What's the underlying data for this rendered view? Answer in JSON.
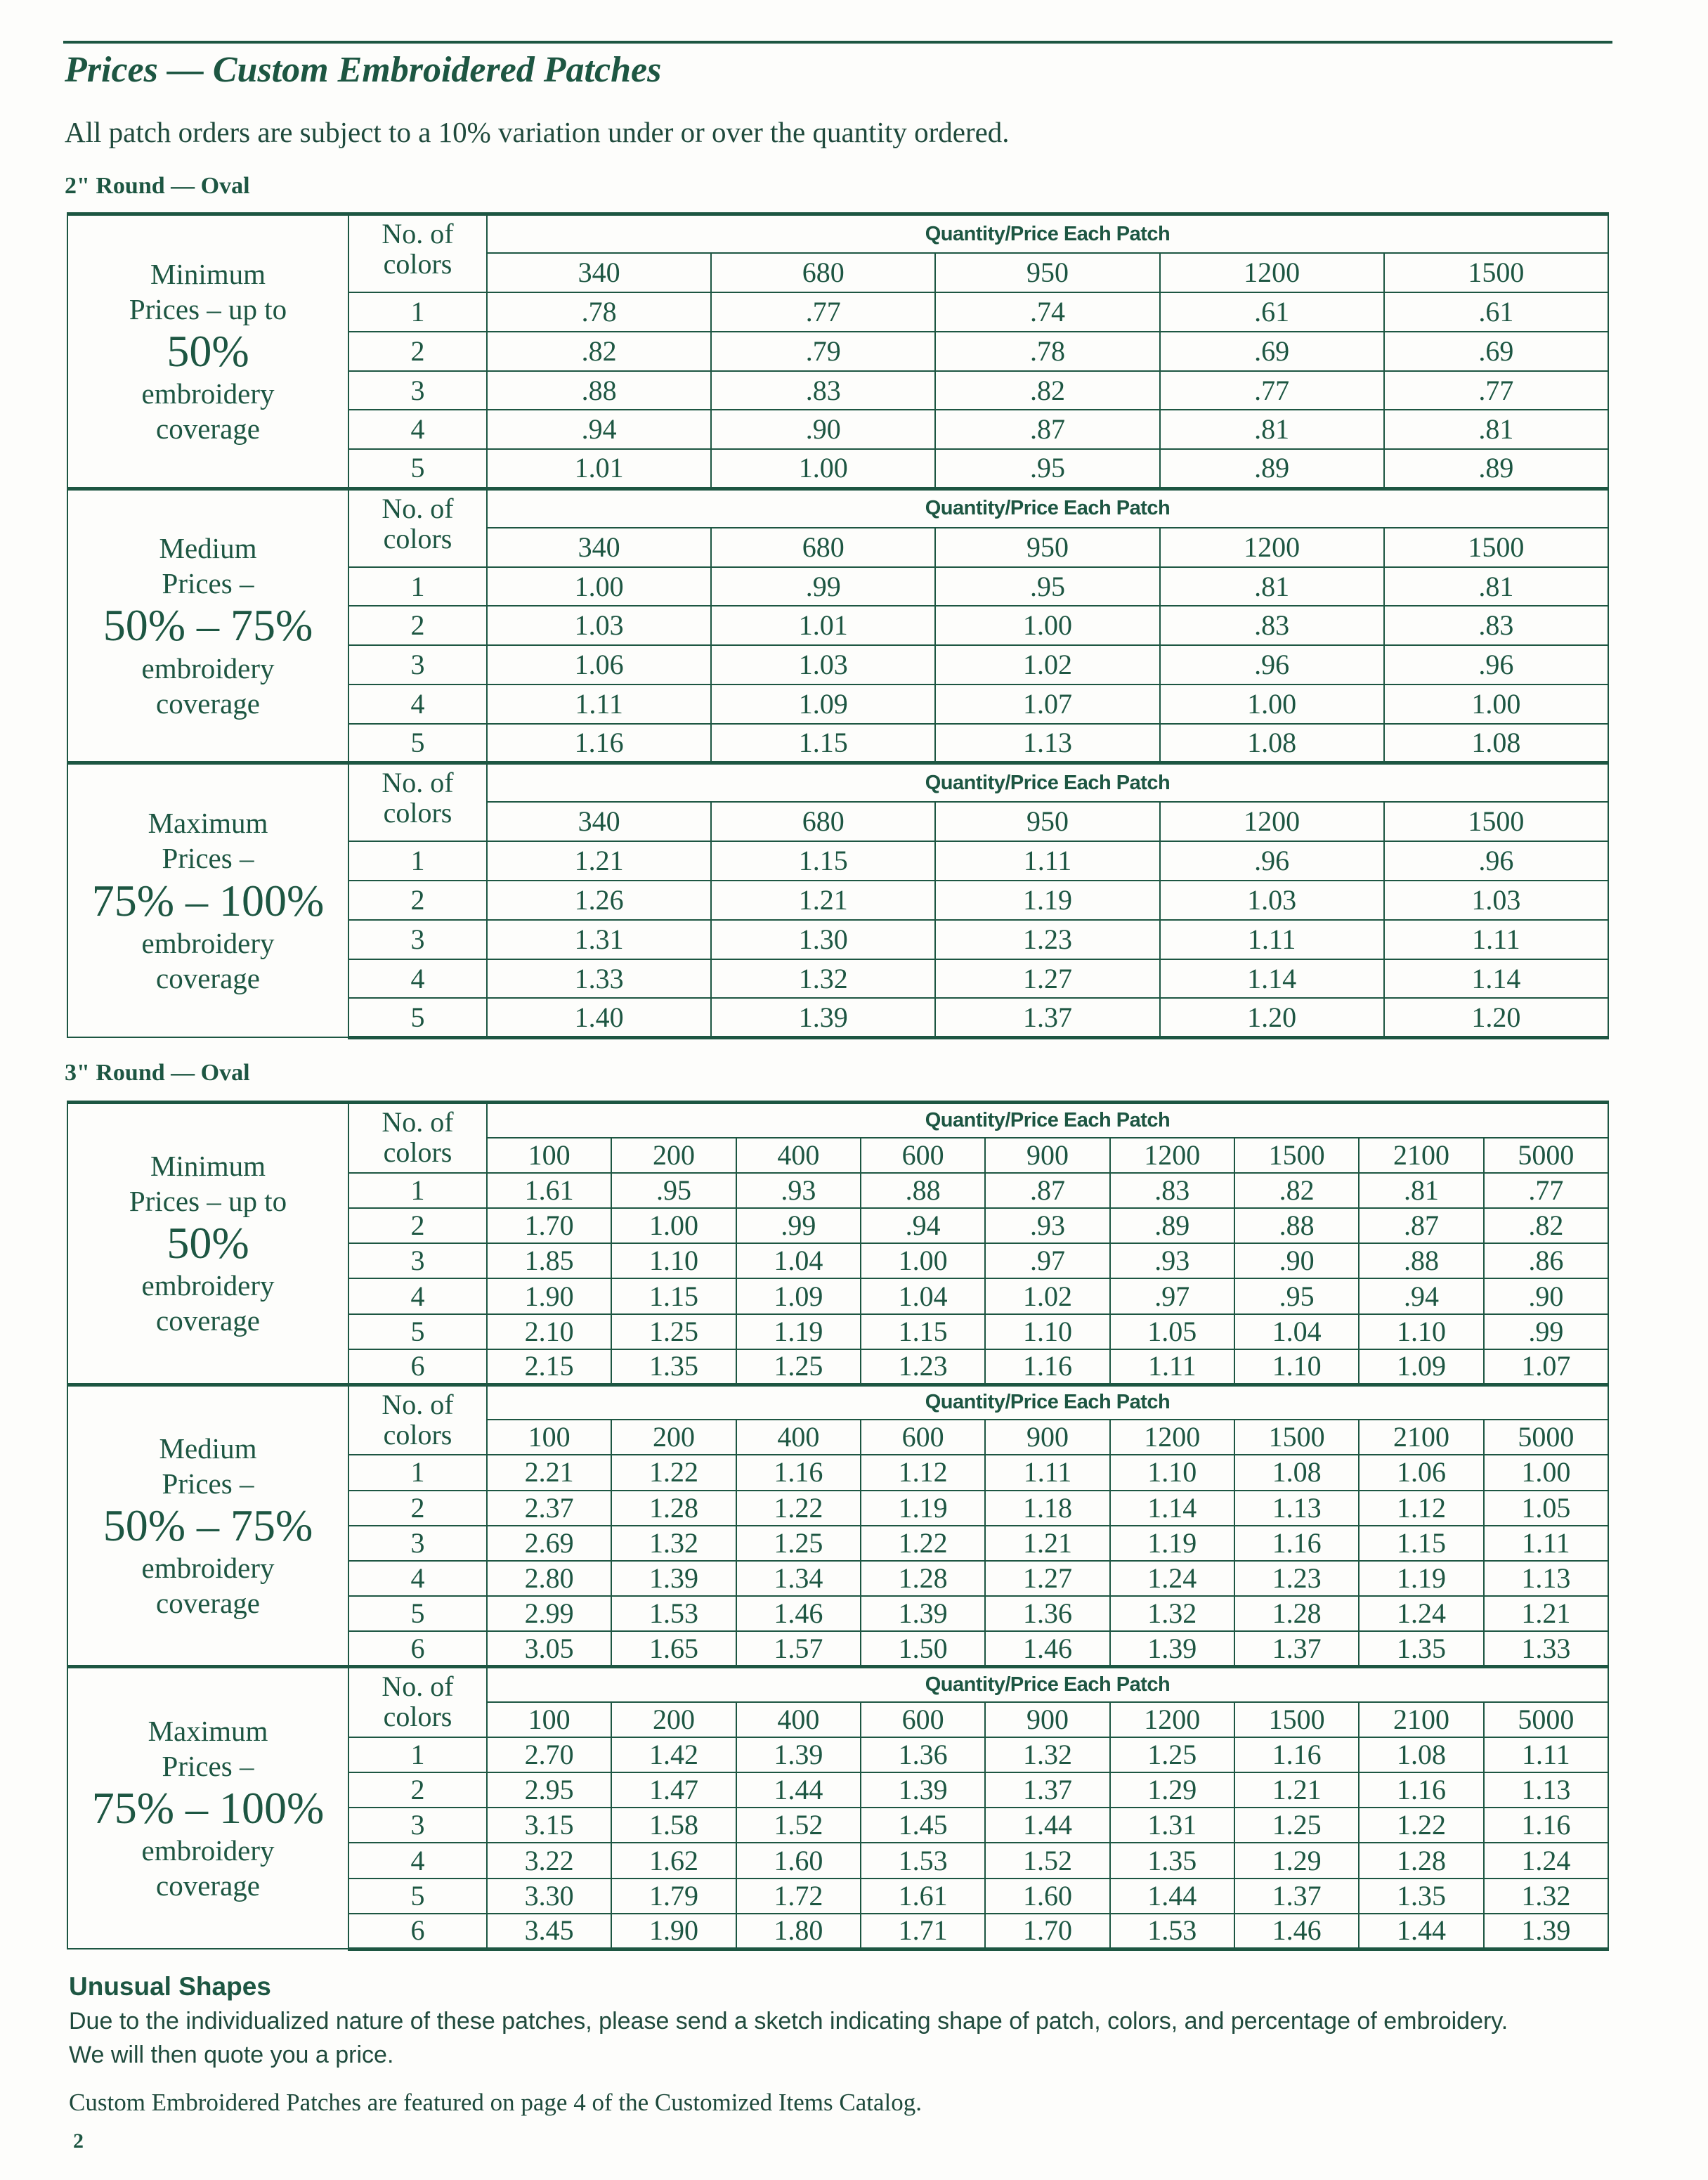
{
  "title": "Prices — Custom Embroidered Patches",
  "intro": "All patch orders are subject to a 10% variation under or over the quantity ordered.",
  "colors": {
    "ink": "#1d5642"
  },
  "sections": [
    {
      "heading": "2\" Round — Oval",
      "blocks": [
        {
          "label_top": [
            "Minimum",
            "Prices – up to"
          ],
          "label_pct": "50%",
          "label_bottom": [
            "embroidery",
            "coverage"
          ],
          "colors_label": [
            "No. of",
            "colors"
          ],
          "header": "Quantity/Price Each Patch",
          "quantities": [
            "340",
            "680",
            "950",
            "1200",
            "1500"
          ],
          "rows": [
            {
              "colors": "1",
              "prices": [
                ".78",
                ".77",
                ".74",
                ".61",
                ".61"
              ]
            },
            {
              "colors": "2",
              "prices": [
                ".82",
                ".79",
                ".78",
                ".69",
                ".69"
              ]
            },
            {
              "colors": "3",
              "prices": [
                ".88",
                ".83",
                ".82",
                ".77",
                ".77"
              ]
            },
            {
              "colors": "4",
              "prices": [
                ".94",
                ".90",
                ".87",
                ".81",
                ".81"
              ]
            },
            {
              "colors": "5",
              "prices": [
                "1.01",
                "1.00",
                ".95",
                ".89",
                ".89"
              ]
            }
          ]
        },
        {
          "label_top": [
            "Medium",
            "Prices –"
          ],
          "label_pct": "50% – 75%",
          "label_bottom": [
            "embroidery",
            "coverage"
          ],
          "colors_label": [
            "No. of",
            "colors"
          ],
          "header": "Quantity/Price Each Patch",
          "quantities": [
            "340",
            "680",
            "950",
            "1200",
            "1500"
          ],
          "rows": [
            {
              "colors": "1",
              "prices": [
                "1.00",
                ".99",
                ".95",
                ".81",
                ".81"
              ]
            },
            {
              "colors": "2",
              "prices": [
                "1.03",
                "1.01",
                "1.00",
                ".83",
                ".83"
              ]
            },
            {
              "colors": "3",
              "prices": [
                "1.06",
                "1.03",
                "1.02",
                ".96",
                ".96"
              ]
            },
            {
              "colors": "4",
              "prices": [
                "1.11",
                "1.09",
                "1.07",
                "1.00",
                "1.00"
              ]
            },
            {
              "colors": "5",
              "prices": [
                "1.16",
                "1.15",
                "1.13",
                "1.08",
                "1.08"
              ]
            }
          ]
        },
        {
          "label_top": [
            "Maximum",
            "Prices –"
          ],
          "label_pct": "75% – 100%",
          "label_bottom": [
            "embroidery",
            "coverage"
          ],
          "colors_label": [
            "No. of",
            "colors"
          ],
          "header": "Quantity/Price Each Patch",
          "quantities": [
            "340",
            "680",
            "950",
            "1200",
            "1500"
          ],
          "rows": [
            {
              "colors": "1",
              "prices": [
                "1.21",
                "1.15",
                "1.11",
                ".96",
                ".96"
              ]
            },
            {
              "colors": "2",
              "prices": [
                "1.26",
                "1.21",
                "1.19",
                "1.03",
                "1.03"
              ]
            },
            {
              "colors": "3",
              "prices": [
                "1.31",
                "1.30",
                "1.23",
                "1.11",
                "1.11"
              ]
            },
            {
              "colors": "4",
              "prices": [
                "1.33",
                "1.32",
                "1.27",
                "1.14",
                "1.14"
              ]
            },
            {
              "colors": "5",
              "prices": [
                "1.40",
                "1.39",
                "1.37",
                "1.20",
                "1.20"
              ]
            }
          ]
        }
      ]
    },
    {
      "heading": "3\" Round — Oval",
      "blocks": [
        {
          "label_top": [
            "Minimum",
            "Prices – up to"
          ],
          "label_pct": "50%",
          "label_bottom": [
            "embroidery",
            "coverage"
          ],
          "colors_label": [
            "No. of",
            "colors"
          ],
          "header": "Quantity/Price Each Patch",
          "quantities": [
            "100",
            "200",
            "400",
            "600",
            "900",
            "1200",
            "1500",
            "2100",
            "5000"
          ],
          "rows": [
            {
              "colors": "1",
              "prices": [
                "1.61",
                ".95",
                ".93",
                ".88",
                ".87",
                ".83",
                ".82",
                ".81",
                ".77"
              ]
            },
            {
              "colors": "2",
              "prices": [
                "1.70",
                "1.00",
                ".99",
                ".94",
                ".93",
                ".89",
                ".88",
                ".87",
                ".82"
              ]
            },
            {
              "colors": "3",
              "prices": [
                "1.85",
                "1.10",
                "1.04",
                "1.00",
                ".97",
                ".93",
                ".90",
                ".88",
                ".86"
              ]
            },
            {
              "colors": "4",
              "prices": [
                "1.90",
                "1.15",
                "1.09",
                "1.04",
                "1.02",
                ".97",
                ".95",
                ".94",
                ".90"
              ]
            },
            {
              "colors": "5",
              "prices": [
                "2.10",
                "1.25",
                "1.19",
                "1.15",
                "1.10",
                "1.05",
                "1.04",
                "1.10",
                ".99"
              ]
            },
            {
              "colors": "6",
              "prices": [
                "2.15",
                "1.35",
                "1.25",
                "1.23",
                "1.16",
                "1.11",
                "1.10",
                "1.09",
                "1.07"
              ]
            }
          ]
        },
        {
          "label_top": [
            "Medium",
            "Prices –"
          ],
          "label_pct": "50% – 75%",
          "label_bottom": [
            "embroidery",
            "coverage"
          ],
          "colors_label": [
            "No. of",
            "colors"
          ],
          "header": "Quantity/Price Each Patch",
          "quantities": [
            "100",
            "200",
            "400",
            "600",
            "900",
            "1200",
            "1500",
            "2100",
            "5000"
          ],
          "rows": [
            {
              "colors": "1",
              "prices": [
                "2.21",
                "1.22",
                "1.16",
                "1.12",
                "1.11",
                "1.10",
                "1.08",
                "1.06",
                "1.00"
              ]
            },
            {
              "colors": "2",
              "prices": [
                "2.37",
                "1.28",
                "1.22",
                "1.19",
                "1.18",
                "1.14",
                "1.13",
                "1.12",
                "1.05"
              ]
            },
            {
              "colors": "3",
              "prices": [
                "2.69",
                "1.32",
                "1.25",
                "1.22",
                "1.21",
                "1.19",
                "1.16",
                "1.15",
                "1.11"
              ]
            },
            {
              "colors": "4",
              "prices": [
                "2.80",
                "1.39",
                "1.34",
                "1.28",
                "1.27",
                "1.24",
                "1.23",
                "1.19",
                "1.13"
              ]
            },
            {
              "colors": "5",
              "prices": [
                "2.99",
                "1.53",
                "1.46",
                "1.39",
                "1.36",
                "1.32",
                "1.28",
                "1.24",
                "1.21"
              ]
            },
            {
              "colors": "6",
              "prices": [
                "3.05",
                "1.65",
                "1.57",
                "1.50",
                "1.46",
                "1.39",
                "1.37",
                "1.35",
                "1.33"
              ]
            }
          ]
        },
        {
          "label_top": [
            "Maximum",
            "Prices –"
          ],
          "label_pct": "75% – 100%",
          "label_bottom": [
            "embroidery",
            "coverage"
          ],
          "colors_label": [
            "No. of",
            "colors"
          ],
          "header": "Quantity/Price Each Patch",
          "quantities": [
            "100",
            "200",
            "400",
            "600",
            "900",
            "1200",
            "1500",
            "2100",
            "5000"
          ],
          "rows": [
            {
              "colors": "1",
              "prices": [
                "2.70",
                "1.42",
                "1.39",
                "1.36",
                "1.32",
                "1.25",
                "1.16",
                "1.08",
                "1.11"
              ]
            },
            {
              "colors": "2",
              "prices": [
                "2.95",
                "1.47",
                "1.44",
                "1.39",
                "1.37",
                "1.29",
                "1.21",
                "1.16",
                "1.13"
              ]
            },
            {
              "colors": "3",
              "prices": [
                "3.15",
                "1.58",
                "1.52",
                "1.45",
                "1.44",
                "1.31",
                "1.25",
                "1.22",
                "1.16"
              ]
            },
            {
              "colors": "4",
              "prices": [
                "3.22",
                "1.62",
                "1.60",
                "1.53",
                "1.52",
                "1.35",
                "1.29",
                "1.28",
                "1.24"
              ]
            },
            {
              "colors": "5",
              "prices": [
                "3.30",
                "1.79",
                "1.72",
                "1.61",
                "1.60",
                "1.44",
                "1.37",
                "1.35",
                "1.32"
              ]
            },
            {
              "colors": "6",
              "prices": [
                "3.45",
                "1.90",
                "1.80",
                "1.71",
                "1.70",
                "1.53",
                "1.46",
                "1.44",
                "1.39"
              ]
            }
          ]
        }
      ]
    }
  ],
  "unusual": {
    "heading": "Unusual Shapes",
    "line1": "Due to the individualized nature of these patches, please send a sketch indicating shape of patch, colors, and percentage of embroidery.",
    "line2": "We will then quote you a price."
  },
  "note": "Custom Embroidered Patches are featured on page 4 of the Customized Items Catalog.",
  "page_number": "2"
}
